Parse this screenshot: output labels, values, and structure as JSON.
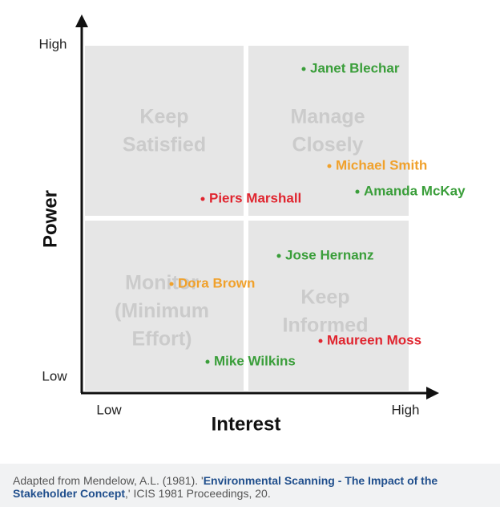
{
  "axes": {
    "y_label": "Power",
    "x_label": "Interest",
    "y_high": "High",
    "y_low": "Low",
    "x_low": "Low",
    "x_high": "High"
  },
  "quadrants": [
    {
      "lines": [
        "Keep",
        "Satisfied"
      ]
    },
    {
      "lines": [
        "Manage",
        "Closely"
      ]
    },
    {
      "lines": [
        "Monitor",
        "(Minimum",
        "Effort)"
      ]
    },
    {
      "lines": [
        "Keep",
        "Informed"
      ]
    }
  ],
  "stakeholders": [
    {
      "name": "Janet Blechar",
      "color": "#3a9e3a"
    },
    {
      "name": "Michael Smith",
      "color": "#f0a12c"
    },
    {
      "name": "Amanda McKay",
      "color": "#3a9e3a"
    },
    {
      "name": "Piers Marshall",
      "color": "#e0252f"
    },
    {
      "name": "Jose Hernanz",
      "color": "#3a9e3a"
    },
    {
      "name": "Dora Brown",
      "color": "#f0a12c"
    },
    {
      "name": "Maureen Moss",
      "color": "#e0252f"
    },
    {
      "name": "Mike Wilkins",
      "color": "#3a9e3a"
    }
  ],
  "caption": {
    "before": "Adapted from Mendelow, A.L. (1981). '",
    "link": "Environmental Scanning - The Impact of the Stakeholder Concept",
    "after": ",' ICIS 1981 Proceedings, 20."
  }
}
